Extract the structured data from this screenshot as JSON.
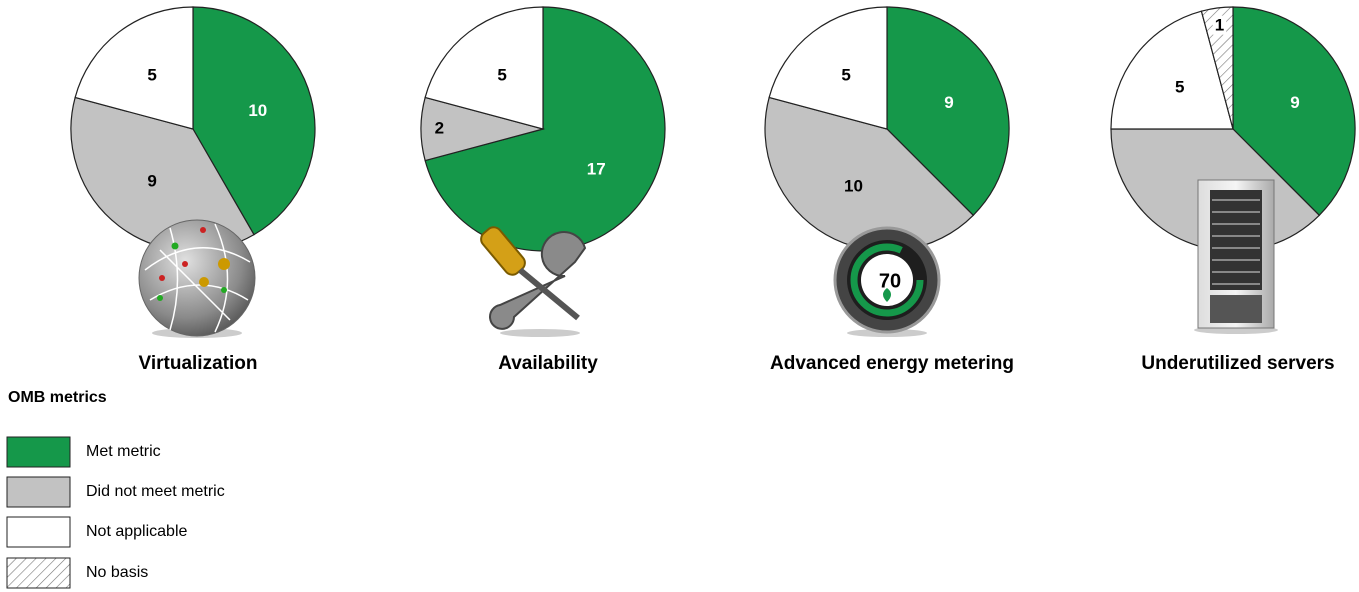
{
  "legend": {
    "title": "OMB metrics",
    "items": [
      {
        "name": "Met metric",
        "color": "#15984a"
      },
      {
        "name": "Did not meet metric",
        "color": "#c2c2c2"
      },
      {
        "name": "Not applicable",
        "color": "#ffffff"
      },
      {
        "name": "No basis",
        "color": "#ffffff",
        "hatched": true
      }
    ]
  },
  "chart_data": [
    {
      "type": "pie",
      "title": "Virtualization",
      "values": [
        10,
        9,
        5,
        null
      ]
    },
    {
      "type": "pie",
      "title": "Availability",
      "values": [
        17,
        2,
        5,
        null
      ]
    },
    {
      "type": "pie",
      "title": "Advanced energy metering",
      "values": [
        9,
        10,
        5,
        null
      ],
      "annotation": "70"
    },
    {
      "type": "pie",
      "title": "Underutilized servers",
      "values": [
        9,
        9,
        5,
        1
      ]
    }
  ]
}
